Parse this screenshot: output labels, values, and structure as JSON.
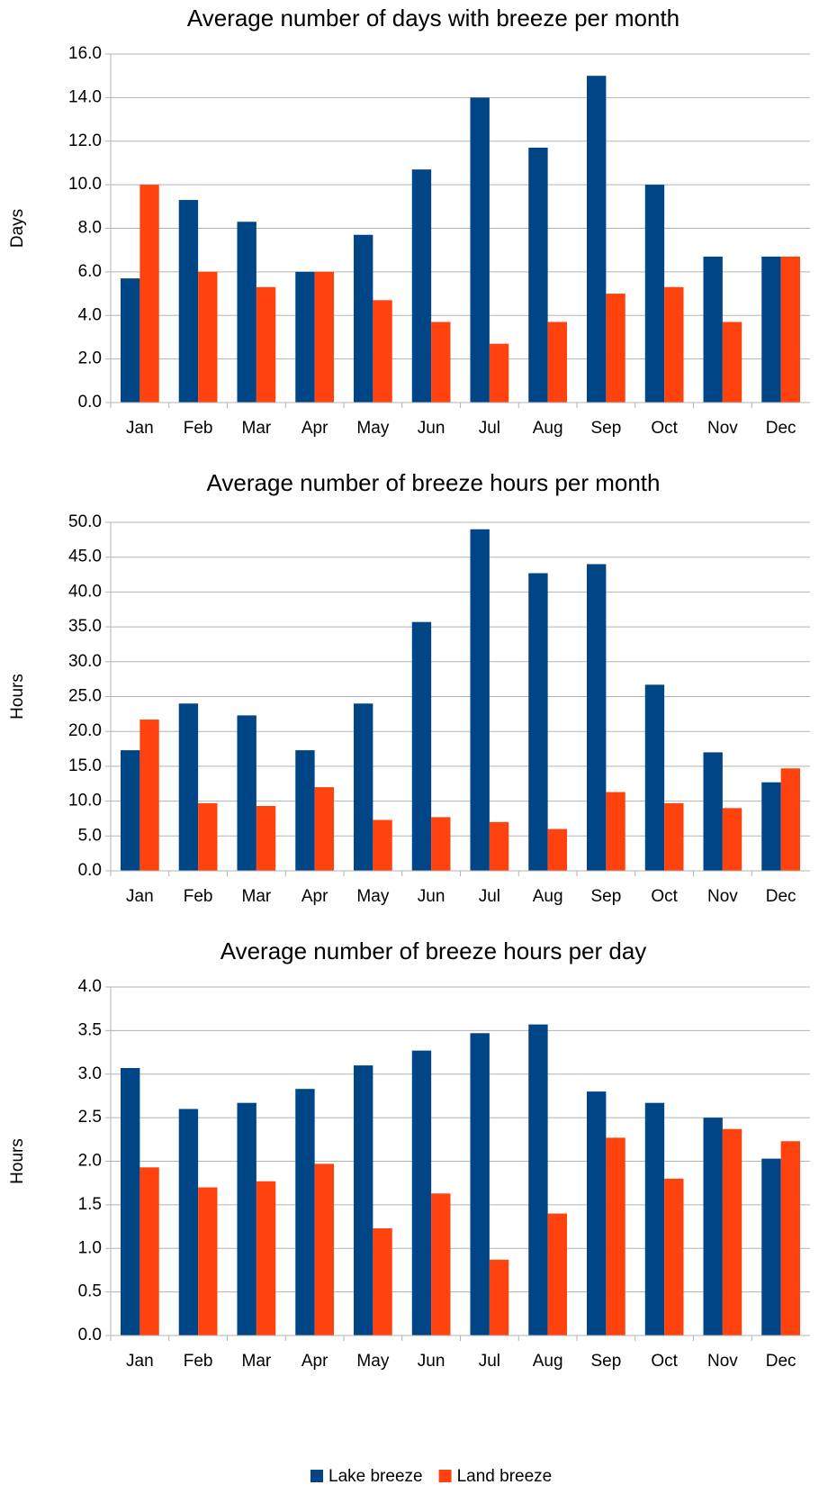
{
  "chart_data": [
    {
      "type": "bar",
      "title": "Average number of days with breeze per month",
      "y_label": "Days",
      "categories": [
        "Jan",
        "Feb",
        "Mar",
        "Apr",
        "May",
        "Jun",
        "Jul",
        "Aug",
        "Sep",
        "Oct",
        "Nov",
        "Dec"
      ],
      "series": [
        {
          "color": "#004586",
          "values": [
            5.7,
            9.3,
            8.3,
            6.0,
            7.7,
            10.7,
            14.0,
            11.7,
            15.0,
            10.0,
            6.7,
            6.7
          ]
        },
        {
          "color": "#ff420e",
          "values": [
            10.0,
            6.0,
            5.3,
            6.0,
            4.7,
            3.7,
            2.7,
            3.7,
            5.0,
            5.3,
            3.7,
            6.7
          ]
        }
      ],
      "ylim": [
        0,
        16
      ],
      "yticks": [
        {
          "value": 0,
          "label": "0.0"
        },
        {
          "value": 2,
          "label": "2.0"
        },
        {
          "value": 4,
          "label": "4.0"
        },
        {
          "value": 6,
          "label": "6.0"
        },
        {
          "value": 8,
          "label": "8.0"
        },
        {
          "value": 10,
          "label": "10.0"
        },
        {
          "value": 12,
          "label": "12.0"
        },
        {
          "value": 14,
          "label": "14.0"
        },
        {
          "value": 16,
          "label": "16.0"
        }
      ],
      "grid": true
    },
    {
      "type": "bar",
      "title": "Average number of breeze hours per month",
      "y_label": "Hours",
      "categories": [
        "Jan",
        "Feb",
        "Mar",
        "Apr",
        "May",
        "Jun",
        "Jul",
        "Aug",
        "Sep",
        "Oct",
        "Nov",
        "Dec"
      ],
      "series": [
        {
          "color": "#004586",
          "values": [
            17.3,
            24.0,
            22.3,
            17.3,
            24.0,
            35.7,
            49.0,
            42.7,
            44.0,
            26.7,
            17.0,
            12.7
          ]
        },
        {
          "color": "#ff420e",
          "values": [
            21.7,
            9.7,
            9.3,
            12.0,
            7.3,
            7.7,
            7.0,
            6.0,
            11.3,
            9.7,
            9.0,
            14.7
          ]
        }
      ],
      "ylim": [
        0,
        50
      ],
      "yticks": [
        {
          "value": 0,
          "label": "0.0"
        },
        {
          "value": 5,
          "label": "5.0"
        },
        {
          "value": 10,
          "label": "10.0"
        },
        {
          "value": 15,
          "label": "15.0"
        },
        {
          "value": 20,
          "label": "20.0"
        },
        {
          "value": 25,
          "label": "25.0"
        },
        {
          "value": 30,
          "label": "30.0"
        },
        {
          "value": 35,
          "label": "35.0"
        },
        {
          "value": 40,
          "label": "40.0"
        },
        {
          "value": 45,
          "label": "45.0"
        },
        {
          "value": 50,
          "label": "50.0"
        }
      ],
      "grid": true
    },
    {
      "type": "bar",
      "title": "Average number of breeze hours per day",
      "y_label": "Hours",
      "categories": [
        "Jan",
        "Feb",
        "Mar",
        "Apr",
        "May",
        "Jun",
        "Jul",
        "Aug",
        "Sep",
        "Oct",
        "Nov",
        "Dec"
      ],
      "series": [
        {
          "name": "Lake breeze",
          "color": "#004586",
          "values": [
            3.07,
            2.6,
            2.67,
            2.83,
            3.1,
            3.27,
            3.47,
            3.57,
            2.8,
            2.67,
            2.5,
            2.03
          ]
        },
        {
          "name": "Land breeze",
          "color": "#ff420e",
          "values": [
            1.93,
            1.7,
            1.77,
            1.97,
            1.23,
            1.63,
            0.87,
            1.4,
            2.27,
            1.8,
            2.37,
            2.23
          ]
        }
      ],
      "ylim": [
        0,
        4
      ],
      "yticks": [
        {
          "value": 0,
          "label": "0.0"
        },
        {
          "value": 0.5,
          "label": "0.5"
        },
        {
          "value": 1,
          "label": "1.0"
        },
        {
          "value": 1.5,
          "label": "1.5"
        },
        {
          "value": 2,
          "label": "2.0"
        },
        {
          "value": 2.5,
          "label": "2.5"
        },
        {
          "value": 3,
          "label": "3.0"
        },
        {
          "value": 3.5,
          "label": "3.5"
        },
        {
          "value": 4,
          "label": "4.0"
        }
      ],
      "grid": true
    }
  ]
}
